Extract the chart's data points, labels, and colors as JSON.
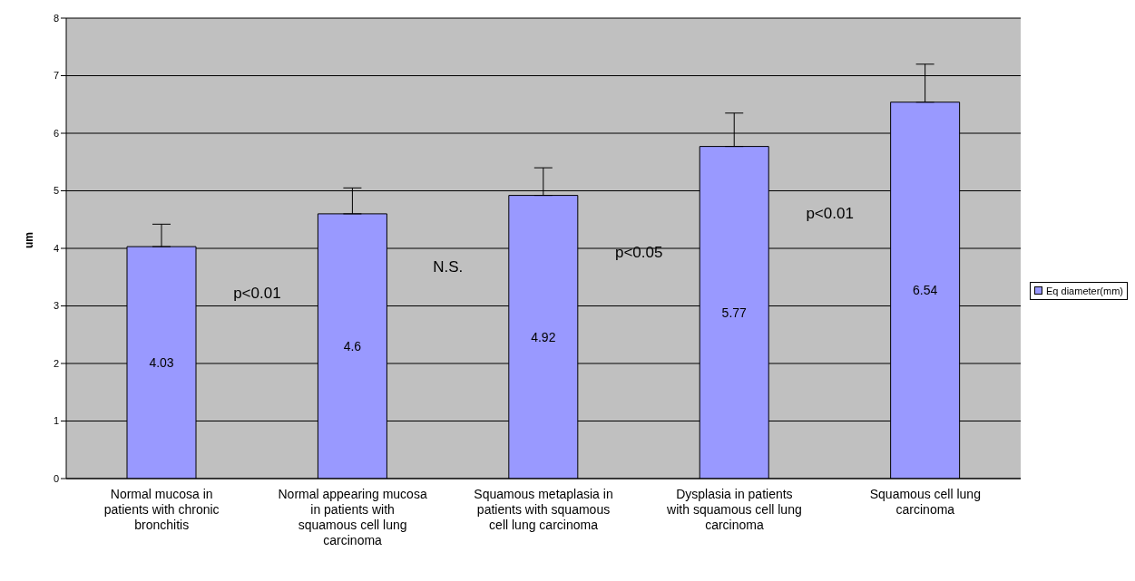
{
  "chart_data": {
    "type": "bar",
    "ylabel": "um",
    "categories": [
      "Normal mucosa in patients with chronic bronchitis",
      "Normal appearing mucosa in patients with squamous cell lung carcinoma",
      "Squamous metaplasia in patients with squamous cell lung carcinoma",
      "Dysplasia in patients with squamous cell lung carcinoma",
      "Squamous cell lung carcinoma"
    ],
    "series": [
      {
        "name": "Eq diameter(mm)",
        "color": "#9999ff",
        "values": [
          4.03,
          4.6,
          4.92,
          5.77,
          6.54
        ],
        "errors": [
          [
            4.03,
            4.42
          ],
          [
            4.6,
            5.05
          ],
          [
            4.92,
            5.4
          ],
          [
            5.77,
            6.35
          ],
          [
            6.54,
            7.2
          ]
        ]
      }
    ],
    "ylim": [
      0,
      8
    ],
    "yticks": [
      0,
      1,
      2,
      3,
      4,
      5,
      6,
      7,
      8
    ],
    "grid": "y",
    "legend": "right",
    "data_labels": true,
    "annotations": [
      "p<0.01",
      "N.S.",
      "p<0.05",
      "p<0.01"
    ]
  }
}
